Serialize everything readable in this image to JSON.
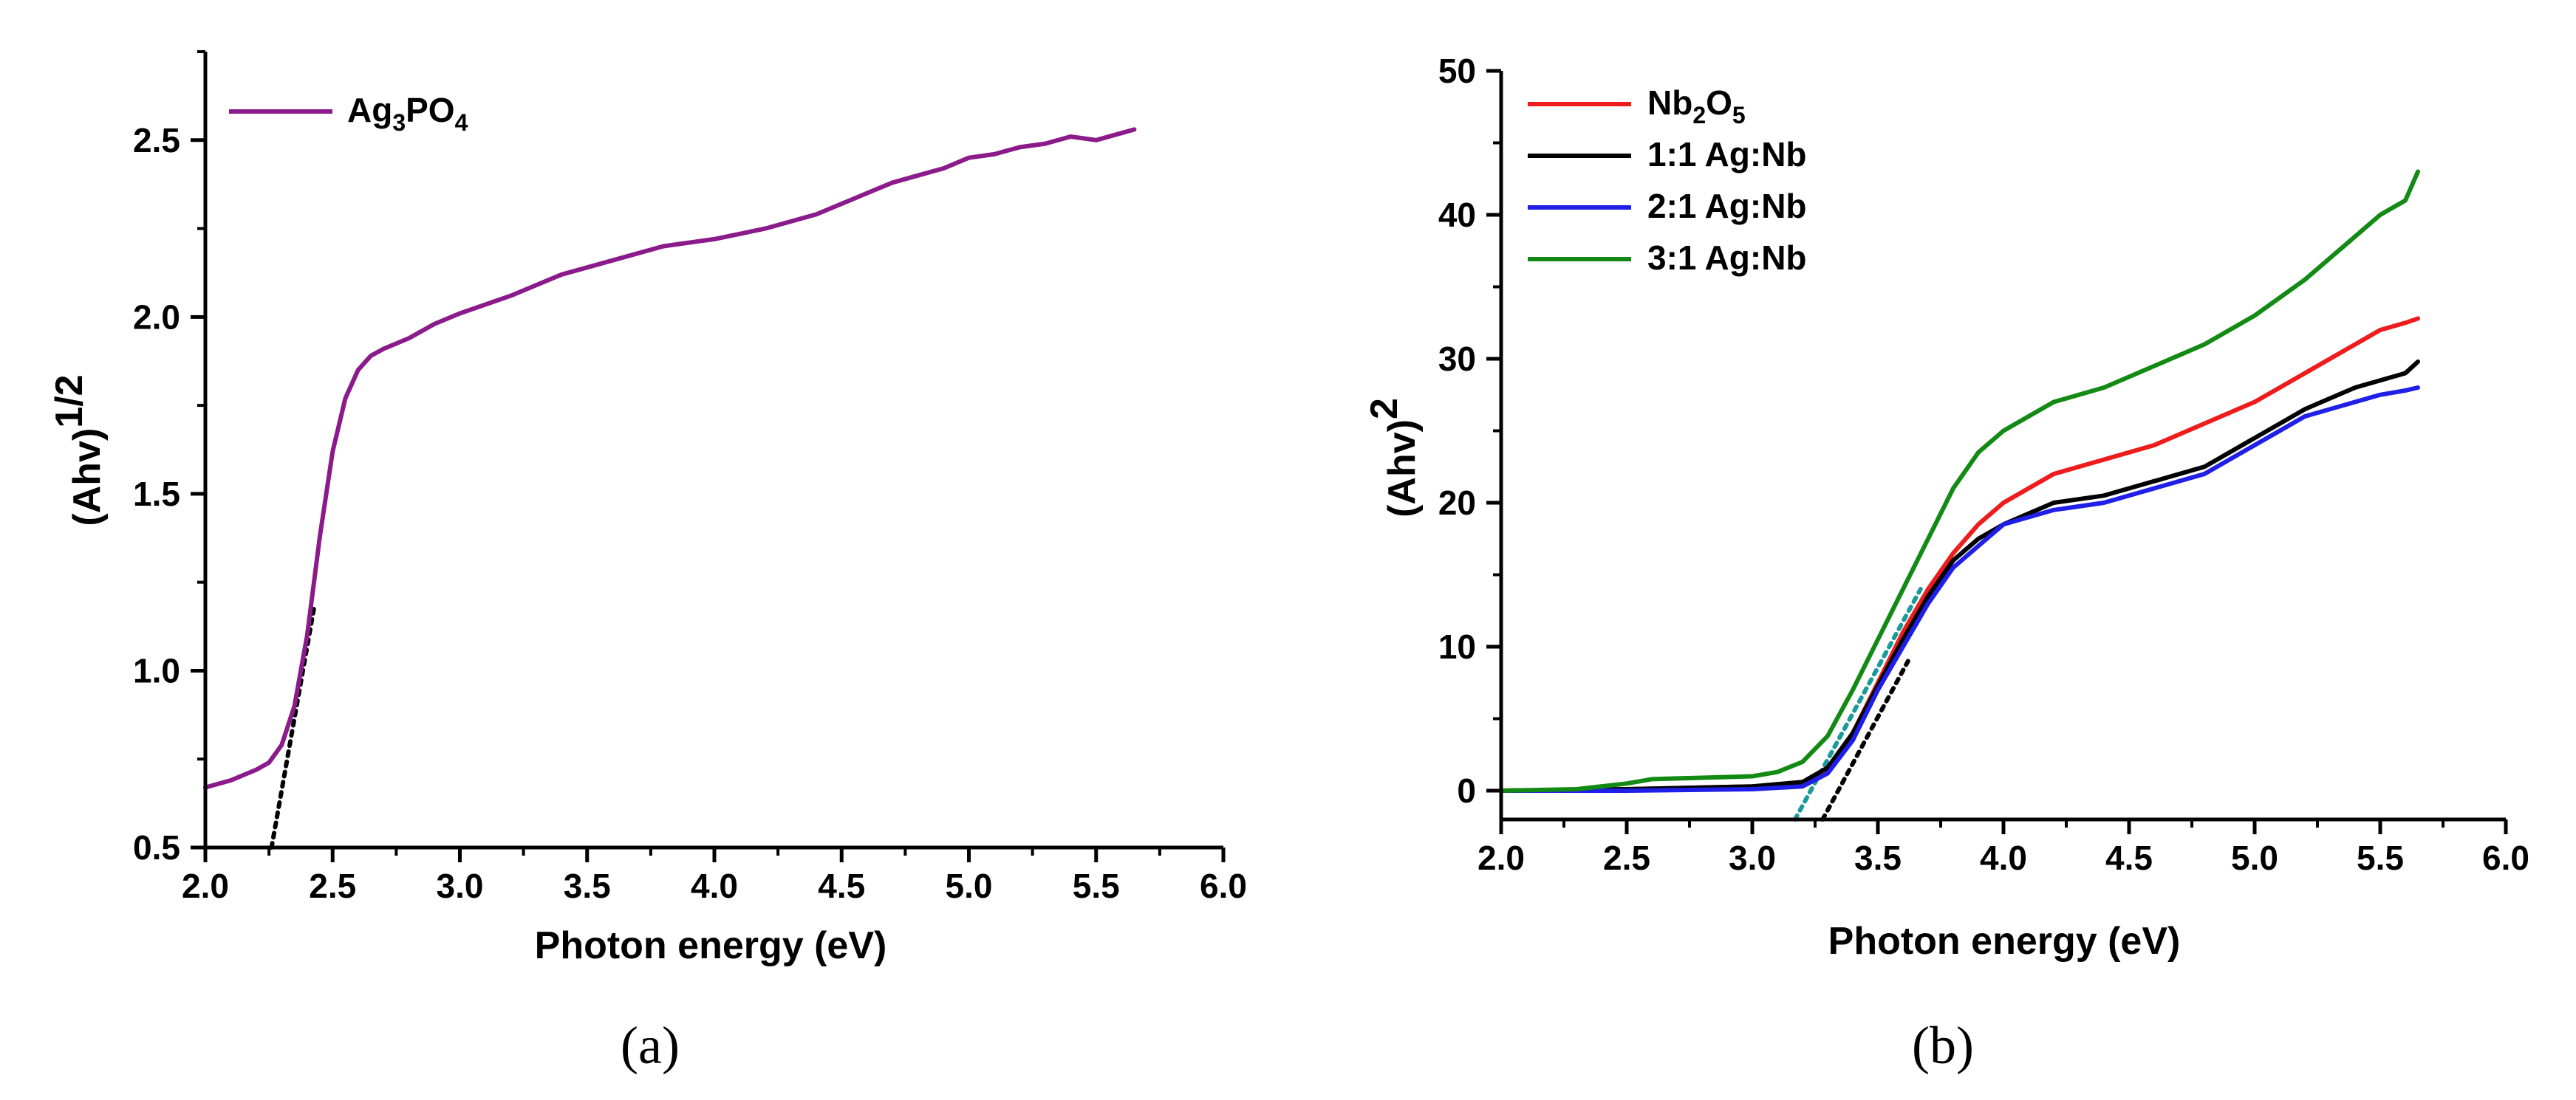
{
  "chart_data": [
    {
      "type": "line",
      "panel_label": "(a)",
      "xlabel": "Photon energy (eV)",
      "ylabel": "(Ahv)",
      "ylabel_superscript": "1/2",
      "xlim": [
        2.0,
        6.0
      ],
      "ylim": [
        0.5,
        2.75
      ],
      "x_ticks": [
        "2.0",
        "2.5",
        "3.0",
        "3.5",
        "4.0",
        "4.5",
        "5.0",
        "5.5",
        "6.0"
      ],
      "y_ticks": [
        "0.5",
        "1.0",
        "1.5",
        "2.0",
        "2.5"
      ],
      "legend_position": "top-left",
      "series": [
        {
          "name": "Ag3PO4",
          "label_parts": [
            "Ag",
            "3",
            "PO",
            "4"
          ],
          "color": "#8b1a8b",
          "x": [
            2.0,
            2.1,
            2.2,
            2.25,
            2.3,
            2.35,
            2.4,
            2.45,
            2.5,
            2.55,
            2.6,
            2.65,
            2.7,
            2.8,
            2.9,
            3.0,
            3.2,
            3.4,
            3.6,
            3.8,
            3.9,
            4.0,
            4.2,
            4.4,
            4.5,
            4.6,
            4.7,
            4.8,
            4.9,
            5.0,
            5.1,
            5.2,
            5.3,
            5.4,
            5.5,
            5.6,
            5.65
          ],
          "y": [
            0.67,
            0.69,
            0.72,
            0.74,
            0.79,
            0.9,
            1.1,
            1.38,
            1.62,
            1.77,
            1.85,
            1.89,
            1.91,
            1.94,
            1.98,
            2.01,
            2.06,
            2.12,
            2.16,
            2.2,
            2.21,
            2.22,
            2.25,
            2.29,
            2.32,
            2.35,
            2.38,
            2.4,
            2.42,
            2.45,
            2.46,
            2.48,
            2.49,
            2.51,
            2.5,
            2.52,
            2.53
          ]
        }
      ],
      "tangent_lines": [
        {
          "color": "#000000",
          "x": [
            2.26,
            2.43
          ],
          "y": [
            0.5,
            1.19
          ]
        }
      ]
    },
    {
      "type": "line",
      "panel_label": "(b)",
      "xlabel": "Photon energy (eV)",
      "ylabel": "(Ahv)",
      "ylabel_superscript": "2",
      "xlim": [
        2.0,
        6.0
      ],
      "ylim": [
        -2,
        50
      ],
      "x_ticks": [
        "2.0",
        "2.5",
        "3.0",
        "3.5",
        "4.0",
        "4.5",
        "5.0",
        "5.5",
        "6.0"
      ],
      "y_ticks": [
        "0",
        "10",
        "20",
        "30",
        "40",
        "50"
      ],
      "legend_position": "top-left",
      "series": [
        {
          "name": "Nb2O5",
          "label_parts": [
            "Nb",
            "2",
            "O",
            "5"
          ],
          "color": "#ee1c1c",
          "x": [
            2.0,
            2.5,
            3.0,
            3.2,
            3.3,
            3.4,
            3.5,
            3.6,
            3.7,
            3.8,
            3.9,
            4.0,
            4.2,
            4.4,
            4.6,
            4.8,
            5.0,
            5.2,
            5.4,
            5.5,
            5.6,
            5.65
          ],
          "y": [
            0.0,
            0.1,
            0.3,
            0.5,
            1.5,
            4.0,
            7.5,
            11.0,
            14.0,
            16.5,
            18.5,
            20.0,
            22.0,
            23.0,
            24.0,
            25.5,
            27.0,
            29.0,
            31.0,
            32.0,
            32.5,
            32.8
          ]
        },
        {
          "name": "1:1 Ag:Nb",
          "label_parts": [
            "1:1 Ag:Nb"
          ],
          "color": "#000000",
          "x": [
            2.0,
            2.5,
            3.0,
            3.2,
            3.3,
            3.4,
            3.5,
            3.6,
            3.7,
            3.8,
            3.9,
            4.0,
            4.2,
            4.4,
            4.6,
            4.8,
            5.0,
            5.2,
            5.4,
            5.5,
            5.6,
            5.65
          ],
          "y": [
            0.0,
            0.1,
            0.3,
            0.6,
            1.6,
            4.0,
            7.3,
            10.5,
            13.5,
            16.0,
            17.5,
            18.5,
            20.0,
            20.5,
            21.5,
            22.5,
            24.5,
            26.5,
            28.0,
            28.5,
            29.0,
            29.8
          ]
        },
        {
          "name": "2:1 Ag:Nb",
          "label_parts": [
            "2:1 Ag:Nb"
          ],
          "color": "#1f1fe8",
          "x": [
            2.0,
            2.5,
            3.0,
            3.2,
            3.3,
            3.4,
            3.5,
            3.6,
            3.7,
            3.8,
            3.9,
            4.0,
            4.2,
            4.4,
            4.6,
            4.8,
            5.0,
            5.2,
            5.4,
            5.5,
            5.6,
            5.65
          ],
          "y": [
            0.0,
            0.0,
            0.1,
            0.3,
            1.2,
            3.5,
            7.0,
            10.0,
            13.0,
            15.5,
            17.0,
            18.5,
            19.5,
            20.0,
            21.0,
            22.0,
            24.0,
            26.0,
            27.0,
            27.5,
            27.8,
            28.0
          ]
        },
        {
          "name": "3:1 Ag:Nb",
          "label_parts": [
            "3:1 Ag:Nb"
          ],
          "color": "#138a13",
          "x": [
            2.0,
            2.3,
            2.5,
            2.6,
            3.0,
            3.1,
            3.2,
            3.3,
            3.4,
            3.5,
            3.6,
            3.7,
            3.8,
            3.9,
            4.0,
            4.2,
            4.4,
            4.6,
            4.8,
            5.0,
            5.2,
            5.4,
            5.5,
            5.6,
            5.65
          ],
          "y": [
            0.0,
            0.1,
            0.5,
            0.8,
            1.0,
            1.3,
            2.0,
            3.8,
            7.0,
            10.5,
            14.0,
            17.5,
            21.0,
            23.5,
            25.0,
            27.0,
            28.0,
            29.5,
            31.0,
            33.0,
            35.5,
            38.5,
            40.0,
            41.0,
            43.0
          ]
        }
      ],
      "tangent_lines": [
        {
          "color": "#000000",
          "x": [
            3.28,
            3.62
          ],
          "y": [
            -2.0,
            9.0
          ]
        },
        {
          "color": "#1a9a9a",
          "x": [
            3.17,
            3.67
          ],
          "y": [
            -2.0,
            14.0
          ]
        }
      ]
    }
  ]
}
